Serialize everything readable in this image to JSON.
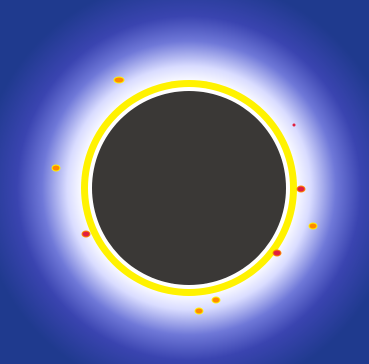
{
  "scene": {
    "type": "solar-eclipse-illustration",
    "colors": {
      "sky_outer": "#0b2a6b",
      "sky_mid": "#23409b",
      "corona_inner": "#ffffff",
      "corona_outer": "#4a55c2",
      "ring": "#ffee00",
      "ring_inner": "#ffffff",
      "moon": "#3a3836",
      "prominence_red": "#e02040",
      "prominence_orange": "#ff8a00",
      "prominence_yellow": "#fff200"
    },
    "elements": {
      "moon": {
        "name": "moon-disk"
      },
      "ring": {
        "name": "solar-ring"
      },
      "corona": {
        "name": "corona-glow"
      },
      "prominences": [
        {
          "name": "prominence",
          "style": "orange"
        },
        {
          "name": "prominence",
          "style": "orange"
        },
        {
          "name": "prominence",
          "style": "red"
        },
        {
          "name": "prominence",
          "style": "red"
        },
        {
          "name": "prominence",
          "style": "orange"
        },
        {
          "name": "prominence",
          "style": "red"
        },
        {
          "name": "prominence",
          "style": "orange"
        },
        {
          "name": "prominence",
          "style": "orange"
        },
        {
          "name": "prominence",
          "style": "red"
        }
      ]
    }
  }
}
